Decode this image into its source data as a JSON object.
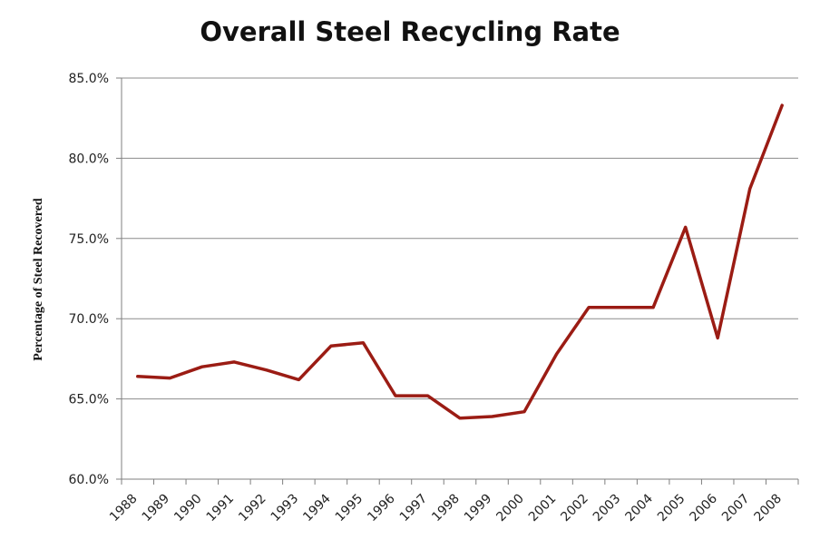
{
  "chart_data": {
    "type": "line",
    "title": "Overall Steel Recycling Rate",
    "xlabel": "",
    "ylabel": "Percentage of Steel Recovered",
    "categories": [
      "1988",
      "1989",
      "1990",
      "1991",
      "1992",
      "1993",
      "1994",
      "1995",
      "1996",
      "1997",
      "1998",
      "1999",
      "2000",
      "2001",
      "2002",
      "2003",
      "2004",
      "2005",
      "2006",
      "2007",
      "2008"
    ],
    "x_tick_labels": [
      "1988",
      "1989",
      "1990",
      "1991",
      "1992",
      "1993",
      "1994",
      "1995",
      "1996",
      "1997",
      "1998",
      "1999",
      "2000",
      "2001",
      "2002",
      "2003",
      "2004",
      "2005",
      "2006",
      "2007",
      "2008"
    ],
    "series": [
      {
        "values": [
          66.4,
          66.3,
          67.0,
          67.3,
          66.8,
          66.2,
          68.3,
          68.5,
          65.2,
          65.2,
          63.8,
          63.9,
          64.2,
          67.8,
          70.7,
          70.7,
          70.7,
          75.7,
          68.8,
          78.1,
          83.3
        ]
      }
    ],
    "ylim": [
      60,
      85
    ],
    "y_ticks": [
      60,
      65,
      70,
      75,
      80,
      85
    ],
    "y_tick_labels": [
      "60.0%",
      "65.0%",
      "70.0%",
      "75.0%",
      "80.0%",
      "85.0%"
    ],
    "grid": "horizontal",
    "legend": "none",
    "line_color": "#9b1c14",
    "grid_color": "#8c8c8c",
    "axis_color": "#7f7f7f"
  }
}
